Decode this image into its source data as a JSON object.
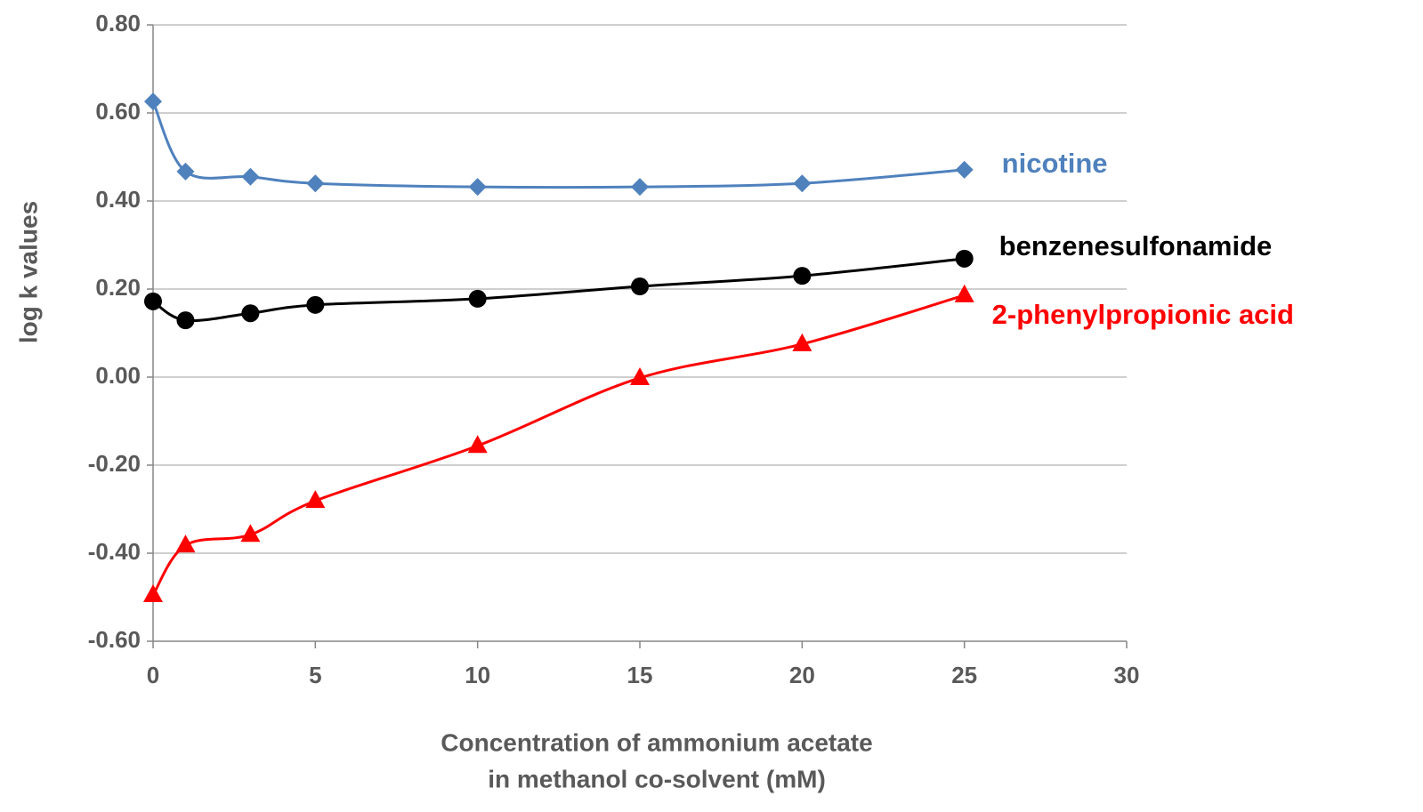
{
  "chart_data": {
    "type": "line",
    "ylabel": "log k values",
    "xlabel": [
      "Concentration of ammonium acetate",
      "in methanol co-solvent (mM)"
    ],
    "x": [
      0,
      1,
      3,
      5,
      10,
      15,
      20,
      25
    ],
    "series": [
      {
        "name": "nicotine",
        "color": "#4f81bd",
        "marker": "diamond",
        "values": [
          0.626,
          0.467,
          0.455,
          0.44,
          0.432,
          0.432,
          0.44,
          0.471
        ]
      },
      {
        "name": "benzenesulfonamide",
        "color": "#000000",
        "marker": "circle",
        "values": [
          0.172,
          0.129,
          0.145,
          0.164,
          0.178,
          0.206,
          0.23,
          0.269
        ]
      },
      {
        "name": "2-phenylpropionic acid",
        "color": "#ff0000",
        "marker": "triangle",
        "values": [
          -0.495,
          -0.382,
          -0.358,
          -0.281,
          -0.156,
          -0.002,
          0.075,
          0.186
        ]
      }
    ],
    "xlim": [
      0,
      30
    ],
    "xticks": [
      0,
      5,
      10,
      15,
      20,
      25,
      30
    ],
    "ylim": [
      -0.6,
      0.8
    ],
    "yticks": [
      {
        "value": -0.6,
        "label": "-0.60"
      },
      {
        "value": -0.4,
        "label": "-0.40"
      },
      {
        "value": -0.2,
        "label": "-0.20"
      },
      {
        "value": 0,
        "label": "0.00"
      },
      {
        "value": 0.2,
        "label": "0.20"
      },
      {
        "value": 0.4,
        "label": "0.40"
      },
      {
        "value": 0.6,
        "label": "0.60"
      },
      {
        "value": 0.8,
        "label": "0.80"
      }
    ],
    "grid": true,
    "smooth": true
  }
}
